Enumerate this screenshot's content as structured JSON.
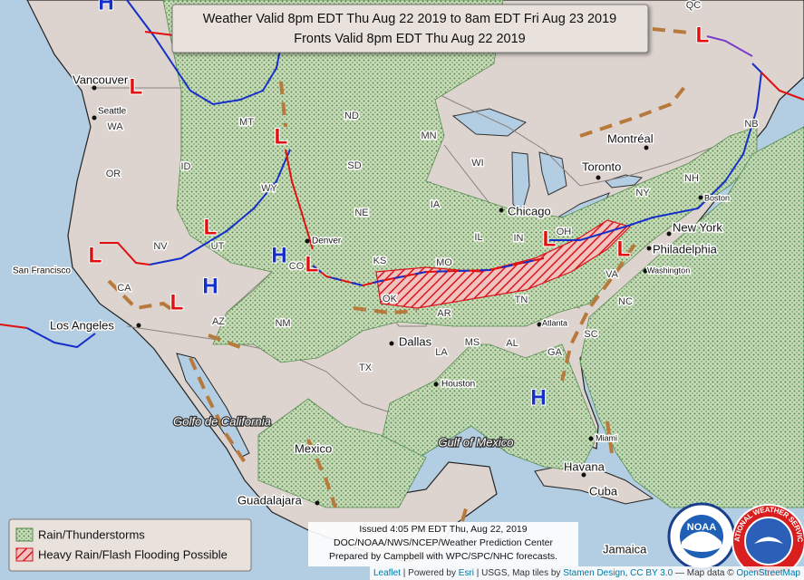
{
  "title": {
    "line1": "Weather Valid 8pm EDT Thu Aug 22 2019 to 8am EDT Fri Aug 23 2019",
    "line2": "Fronts Valid 8pm EDT Thu Aug 22 2019"
  },
  "legend": [
    {
      "label": "Rain/Thunderstorms"
    },
    {
      "label": "Heavy Rain/Flash Flooding Possible"
    }
  ],
  "issued": [
    "Issued 4:05 PM EDT Thu, Aug 22, 2019",
    "DOC/NOAA/NWS/NCEP/Weather Prediction Center",
    "Prepared by Campbell with WPC/SPC/NHC forecasts."
  ],
  "attribution": [
    "Leaflet",
    " | Powered by ",
    "Esri",
    " | USGS, Map tiles by ",
    "Stamen Design",
    ", ",
    "CC BY 3.0",
    " — Map data © ",
    "OpenStreetMap"
  ],
  "cities": [
    "Vancouver",
    "Seattle",
    "San Francisco",
    "Los Angeles",
    "Denver",
    "Dallas",
    "Houston",
    "Chicago",
    "Toronto",
    "Montréal",
    "Boston",
    "New York",
    "Philadelphia",
    "Washington",
    "Atlanta",
    "Miami",
    "Havana",
    "Cuba",
    "Mexico",
    "Guadalajara",
    "Jamaica"
  ],
  "states": [
    "QC",
    "WA",
    "OR",
    "CA",
    "NV",
    "ID",
    "MT",
    "WY",
    "UT",
    "CO",
    "AZ",
    "NM",
    "ND",
    "SD",
    "NE",
    "KS",
    "OK",
    "TX",
    "MN",
    "IA",
    "MO",
    "AR",
    "LA",
    "WI",
    "IL",
    "IN",
    "OH",
    "TN",
    "MS",
    "AL",
    "GA",
    "SC",
    "NC",
    "VA",
    "NY",
    "NH",
    "NB"
  ],
  "regions": [
    "Golfo de California",
    "Gulf of Mexico"
  ],
  "pressure_centers": [
    {
      "label": "H",
      "color": "#1530c8"
    },
    {
      "label": "L",
      "color": "#e01010"
    },
    {
      "label": "L",
      "color": "#e01010"
    },
    {
      "label": "L",
      "color": "#e01010"
    },
    {
      "label": "L",
      "color": "#e01010"
    },
    {
      "label": "L",
      "color": "#e01010"
    },
    {
      "label": "H",
      "color": "#1530c8"
    },
    {
      "label": "L",
      "color": "#e01010"
    },
    {
      "label": "H",
      "color": "#1530c8"
    },
    {
      "label": "L",
      "color": "#e01010"
    },
    {
      "label": "L",
      "color": "#e01010"
    },
    {
      "label": "L",
      "color": "#e01010"
    },
    {
      "label": "H",
      "color": "#1530c8"
    }
  ],
  "logos": {
    "noaa": "NOAA",
    "nws": "NATIONAL WEATHER SERVICE"
  }
}
